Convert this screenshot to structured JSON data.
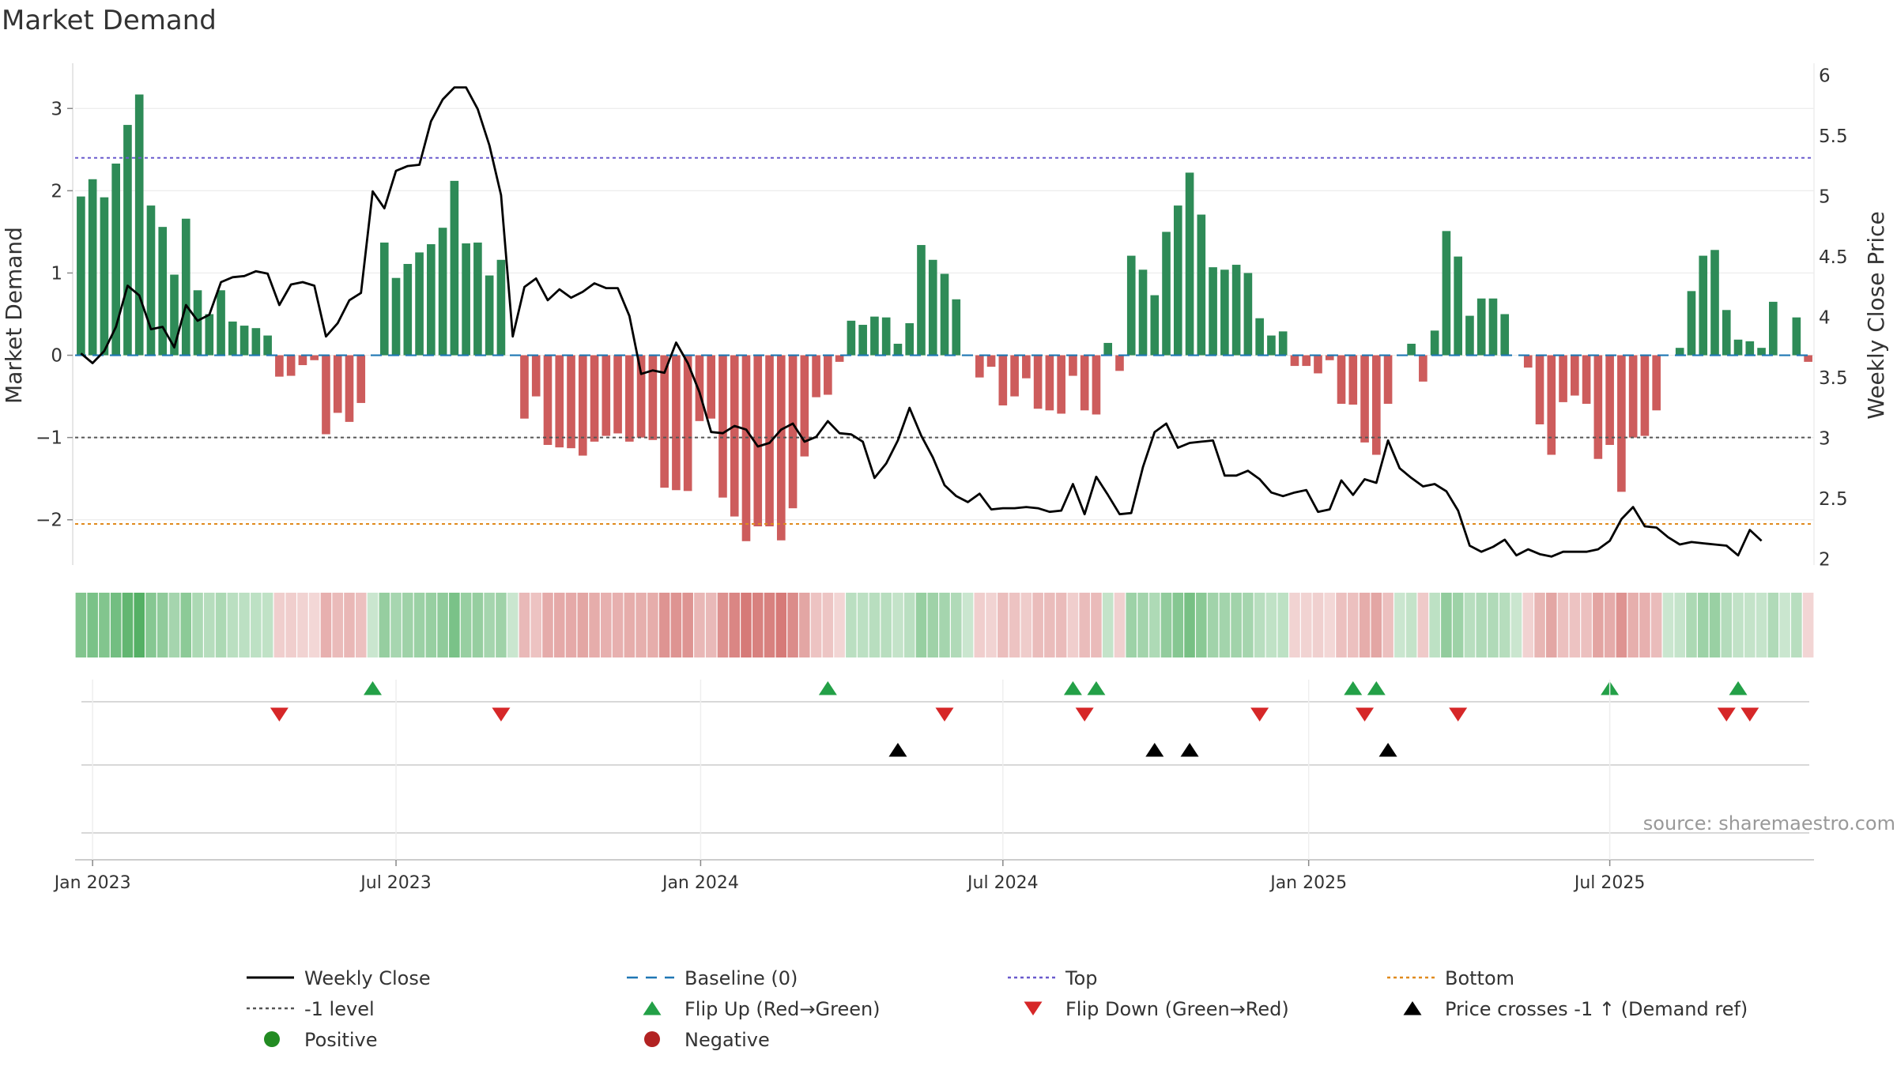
{
  "chart_data": {
    "type": "bar",
    "title": "Market Demand",
    "ylabel": "Market Demand",
    "y2label": "Weekly Close Price",
    "source": "source: sharemaestro.com",
    "ylim": [
      -2.55,
      3.55
    ],
    "y2lim": [
      1.95,
      6.1
    ],
    "y_ticks": [
      -2,
      -1,
      0,
      1,
      2,
      3
    ],
    "y_tick_labels": [
      "−2",
      "−1",
      "0",
      "1",
      "2",
      "3"
    ],
    "y2_ticks": [
      2,
      2.5,
      3,
      3.5,
      4,
      4.5,
      5,
      5.5,
      6
    ],
    "y2_tick_labels": [
      "2",
      "2.5",
      "3",
      "3.5",
      "4",
      "4.5",
      "5",
      "5.5",
      "6"
    ],
    "x_ticks": [
      {
        "label": "Jan 2023",
        "week": 1.5
      },
      {
        "label": "Jul 2023",
        "week": 27.5
      },
      {
        "label": "Jan 2024",
        "week": 53.6
      },
      {
        "label": "Jul 2024",
        "week": 79.5
      },
      {
        "label": "Jan 2025",
        "week": 105.7
      },
      {
        "label": "Jul 2025",
        "week": 131.5
      }
    ],
    "levels": {
      "top": 2.4,
      "minus_one": -1.0,
      "bottom": -2.05,
      "baseline": 0
    },
    "demand": [
      1.93,
      2.14,
      1.92,
      2.33,
      2.8,
      3.17,
      1.82,
      1.56,
      0.98,
      1.66,
      0.79,
      0.5,
      0.79,
      0.41,
      0.36,
      0.33,
      0.24,
      -0.26,
      -0.25,
      -0.12,
      -0.06,
      -0.96,
      -0.7,
      -0.81,
      -0.58,
      0,
      1.37,
      0.94,
      1.11,
      1.25,
      1.35,
      1.55,
      2.12,
      1.36,
      1.37,
      0.97,
      1.16,
      0,
      -0.77,
      -0.5,
      -1.09,
      -1.12,
      -1.13,
      -1.22,
      -1.05,
      -0.98,
      -0.95,
      -1.05,
      -1.0,
      -1.03,
      -1.61,
      -1.64,
      -1.65,
      -0.8,
      -0.77,
      -1.73,
      -1.96,
      -2.26,
      -2.08,
      -2.08,
      -2.25,
      -1.86,
      -1.23,
      -0.51,
      -0.48,
      -0.08,
      0.42,
      0.37,
      0.47,
      0.46,
      0.14,
      0.39,
      1.34,
      1.16,
      0.99,
      0.68,
      0,
      -0.27,
      -0.14,
      -0.61,
      -0.5,
      -0.28,
      -0.65,
      -0.67,
      -0.71,
      -0.25,
      -0.67,
      -0.72,
      0.15,
      -0.19,
      1.21,
      1.04,
      0.73,
      1.5,
      1.82,
      2.22,
      1.71,
      1.07,
      1.04,
      1.1,
      1.0,
      0.45,
      0.24,
      0.29,
      -0.13,
      -0.13,
      -0.22,
      -0.06,
      -0.59,
      -0.6,
      -1.06,
      -1.21,
      -0.59,
      0,
      0.14,
      -0.32,
      0.3,
      1.51,
      1.2,
      0.48,
      0.69,
      0.69,
      0.5,
      0,
      -0.15,
      -0.84,
      -1.21,
      -0.57,
      -0.49,
      -0.59,
      -1.26,
      -1.09,
      -1.66,
      -1.0,
      -0.98,
      -0.67,
      0,
      0.09,
      0.78,
      1.21,
      1.28,
      0.55,
      0.19,
      0.17,
      0.09,
      0.65,
      0,
      0.46,
      -0.08
    ],
    "price": [
      3.7,
      3.62,
      3.72,
      3.92,
      4.26,
      4.18,
      3.9,
      3.92,
      3.75,
      4.1,
      3.97,
      4.02,
      4.29,
      4.33,
      4.34,
      4.38,
      4.36,
      4.1,
      4.27,
      4.29,
      4.26,
      3.84,
      3.95,
      4.14,
      4.2,
      5.04,
      4.9,
      5.21,
      5.25,
      5.26,
      5.62,
      5.8,
      5.9,
      5.9,
      5.72,
      5.42,
      5.01,
      3.84,
      4.25,
      4.32,
      4.14,
      4.23,
      4.16,
      4.21,
      4.28,
      4.24,
      4.24,
      4.01,
      3.53,
      3.56,
      3.54,
      3.79,
      3.62,
      3.38,
      3.05,
      3.04,
      3.1,
      3.07,
      2.93,
      2.96,
      3.07,
      3.12,
      2.97,
      3.01,
      3.14,
      3.04,
      3.03,
      2.97,
      2.67,
      2.79,
      2.98,
      3.25,
      3.02,
      2.84,
      2.61,
      2.52,
      2.47,
      2.54,
      2.41,
      2.42,
      2.42,
      2.43,
      2.42,
      2.39,
      2.4,
      2.62,
      2.37,
      2.68,
      2.53,
      2.37,
      2.38,
      2.76,
      3.05,
      3.12,
      2.92,
      2.96,
      2.97,
      2.98,
      2.69,
      2.69,
      2.73,
      2.66,
      2.55,
      2.52,
      2.55,
      2.57,
      2.39,
      2.41,
      2.65,
      2.53,
      2.66,
      2.63,
      2.98,
      2.75,
      2.67,
      2.6,
      2.62,
      2.56,
      2.4,
      2.11,
      2.06,
      2.1,
      2.16,
      2.03,
      2.08,
      2.04,
      2.02,
      2.06,
      2.06,
      2.06,
      2.08,
      2.15,
      2.33,
      2.43,
      2.27,
      2.26,
      2.18,
      2.12,
      2.14,
      2.13,
      2.12,
      2.11,
      2.03,
      2.24,
      2.15
    ],
    "flip_up_weeks": [
      25,
      64,
      85,
      87,
      109,
      111,
      131,
      142
    ],
    "flip_down_weeks": [
      17,
      36,
      74,
      86,
      101,
      110,
      118,
      141,
      143
    ],
    "price_cross_weeks": [
      70,
      92,
      95,
      112
    ],
    "legend": [
      {
        "label": "Weekly Close",
        "kind": "solid-line",
        "color": "#000000"
      },
      {
        "label": "Baseline (0)",
        "kind": "dashed-line",
        "color": "#1f77b4"
      },
      {
        "label": "Top",
        "kind": "dotted-line",
        "color": "#6a5acd"
      },
      {
        "label": "Bottom",
        "kind": "dotted-line",
        "color": "#e08a1e"
      },
      {
        "label": "-1 level",
        "kind": "dotted-line",
        "color": "#555555"
      },
      {
        "label": "Flip Up (Red→Green)",
        "kind": "triangle-up",
        "color": "#23a047"
      },
      {
        "label": "Flip Down (Green→Red)",
        "kind": "triangle-down",
        "color": "#d62728"
      },
      {
        "label": "Price crosses -1 ↑ (Demand ref)",
        "kind": "triangle-up",
        "color": "#000000"
      },
      {
        "label": "Positive",
        "kind": "circle",
        "color": "#228b22"
      },
      {
        "label": "Negative",
        "kind": "circle",
        "color": "#b22222"
      }
    ],
    "legend_placement": "bottom"
  },
  "colors": {
    "positive_bar": "#2e8b57",
    "negative_bar": "#cd5c5c",
    "price_line": "#000000",
    "heat_positive": "#3fa652",
    "heat_negative": "#c9504d"
  }
}
